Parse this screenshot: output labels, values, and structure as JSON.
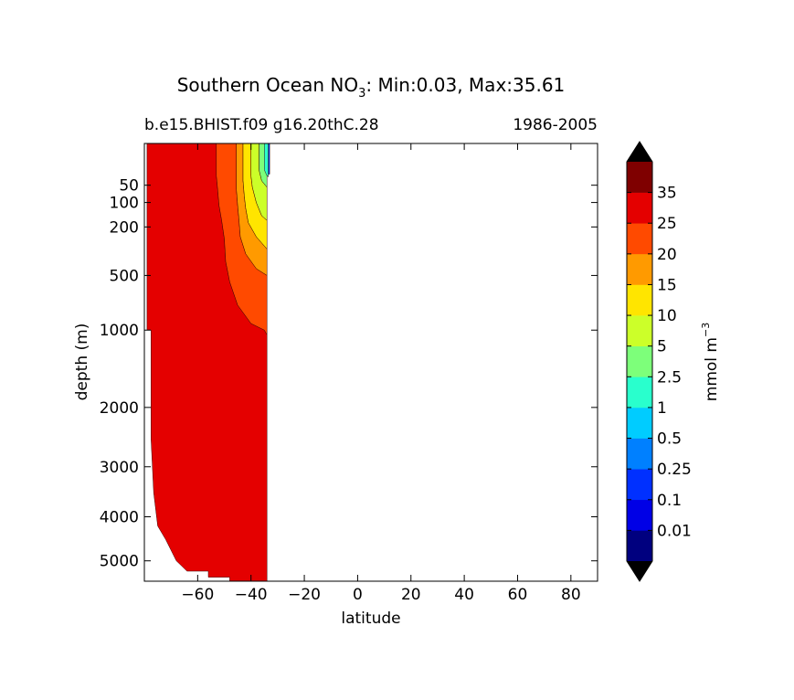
{
  "chart_data": {
    "type": "contourf",
    "title_prefix": "Southern Ocean NO",
    "title_sub": "3",
    "title_suffix": ": Min:0.03, Max:35.61",
    "subtitle_left": "b.e15.BHIST.f09 g16.20thC.28",
    "subtitle_right": "1986-2005",
    "xlabel": "latitude",
    "ylabel": "depth (m)",
    "xlim": [
      -80,
      90
    ],
    "ylim": [
      5500,
      0
    ],
    "x_ticks": [
      -60,
      -40,
      -20,
      0,
      20,
      40,
      60,
      80
    ],
    "x_tick_labels": [
      "−60",
      "−40",
      "−20",
      "0",
      "20",
      "40",
      "60",
      "80"
    ],
    "y_ticks": [
      50,
      100,
      200,
      500,
      1000,
      2000,
      3000,
      4000,
      5000
    ],
    "y_tick_labels": [
      "50",
      "100",
      "200",
      "500",
      "1000",
      "2000",
      "3000",
      "4000",
      "5000"
    ],
    "colorbar": {
      "label": "mmol m",
      "label_sup": "−3",
      "level_labels": [
        "0.01",
        "0.1",
        "0.25",
        "0.5",
        "1",
        "2.5",
        "5",
        "10",
        "15",
        "20",
        "25",
        "35"
      ],
      "colors": [
        "#00007f",
        "#0000e6",
        "#0030ff",
        "#0080ff",
        "#00ccff",
        "#29ffcd",
        "#7dff7a",
        "#ccff29",
        "#ffe500",
        "#ff9a00",
        "#ff4a00",
        "#e40000",
        "#7f0000"
      ],
      "extend_colors": {
        "under": "#000000",
        "over": "#000000"
      }
    },
    "min": 0.03,
    "max": 35.61,
    "data_extent_lat": [
      -79,
      -33
    ],
    "contour_bands": [
      {
        "name": "25-35",
        "color": "#e40000",
        "boundary": [
          [
            -79,
            0
          ],
          [
            -79,
            1000
          ],
          [
            -77.5,
            1000
          ],
          [
            -77.5,
            2500
          ],
          [
            -76.5,
            3500
          ],
          [
            -75,
            4200
          ],
          [
            -72,
            4500
          ],
          [
            -68,
            5000
          ],
          [
            -64,
            5250
          ],
          [
            -56,
            5250
          ],
          [
            -56,
            5400
          ],
          [
            -48,
            5400
          ],
          [
            -48,
            5500
          ],
          [
            -34,
            5500
          ],
          [
            -34,
            1050
          ],
          [
            -35,
            1000
          ],
          [
            -40,
            930
          ],
          [
            -45,
            750
          ],
          [
            -48,
            550
          ],
          [
            -49.5,
            400
          ],
          [
            -50,
            260
          ],
          [
            -51,
            170
          ],
          [
            -52,
            110
          ],
          [
            -52.5,
            60
          ],
          [
            -53,
            30
          ],
          [
            -53,
            0
          ]
        ]
      },
      {
        "name": "20-25",
        "color": "#ff4a00",
        "boundary": [
          [
            -53,
            0
          ],
          [
            -53,
            30
          ],
          [
            -52.5,
            60
          ],
          [
            -52,
            110
          ],
          [
            -51,
            170
          ],
          [
            -50,
            260
          ],
          [
            -49.5,
            400
          ],
          [
            -48,
            550
          ],
          [
            -45,
            750
          ],
          [
            -40,
            930
          ],
          [
            -35,
            1000
          ],
          [
            -34,
            1050
          ],
          [
            -34,
            500
          ],
          [
            -38,
            450
          ],
          [
            -42,
            350
          ],
          [
            -44,
            250
          ],
          [
            -44.5,
            170
          ],
          [
            -45,
            110
          ],
          [
            -45.5,
            60
          ],
          [
            -45.5,
            0
          ]
        ]
      },
      {
        "name": "15-20",
        "color": "#ff9a00",
        "boundary": [
          [
            -45.5,
            0
          ],
          [
            -45.5,
            60
          ],
          [
            -45,
            110
          ],
          [
            -44.5,
            170
          ],
          [
            -44,
            250
          ],
          [
            -42,
            350
          ],
          [
            -38,
            450
          ],
          [
            -34,
            500
          ],
          [
            -34,
            320
          ],
          [
            -38,
            250
          ],
          [
            -41,
            180
          ],
          [
            -42,
            120
          ],
          [
            -42.5,
            80
          ],
          [
            -43,
            40
          ],
          [
            -43,
            0
          ]
        ]
      },
      {
        "name": "10-15",
        "color": "#ffe500",
        "boundary": [
          [
            -43,
            0
          ],
          [
            -43,
            40
          ],
          [
            -42.5,
            80
          ],
          [
            -42,
            120
          ],
          [
            -41,
            180
          ],
          [
            -38,
            250
          ],
          [
            -34,
            320
          ],
          [
            -34,
            170
          ],
          [
            -36,
            150
          ],
          [
            -38,
            100
          ],
          [
            -39.5,
            55
          ],
          [
            -40,
            30
          ],
          [
            -40,
            0
          ]
        ]
      },
      {
        "name": "5-10",
        "color": "#ccff29",
        "boundary": [
          [
            -40,
            0
          ],
          [
            -40,
            30
          ],
          [
            -39.5,
            55
          ],
          [
            -38,
            100
          ],
          [
            -36,
            150
          ],
          [
            -34,
            170
          ],
          [
            -34,
            55
          ],
          [
            -36,
            40
          ],
          [
            -37,
            20
          ],
          [
            -37,
            0
          ]
        ]
      },
      {
        "name": "2.5-5",
        "color": "#7dff7a",
        "boundary": [
          [
            -37,
            0
          ],
          [
            -37,
            20
          ],
          [
            -36,
            40
          ],
          [
            -34,
            55
          ],
          [
            -34,
            0
          ]
        ]
      },
      {
        "name": "1-2.5",
        "color": "#29ffcd",
        "boundary": [
          [
            -35,
            0
          ],
          [
            -35,
            20
          ],
          [
            -34,
            30
          ],
          [
            -33.5,
            32
          ],
          [
            -33.5,
            0
          ]
        ]
      },
      {
        "name": "0.01-1",
        "color": "#0030ff",
        "boundary": [
          [
            -33.5,
            0
          ],
          [
            -33.5,
            27
          ],
          [
            -33,
            27
          ],
          [
            -33,
            0
          ]
        ]
      }
    ]
  }
}
